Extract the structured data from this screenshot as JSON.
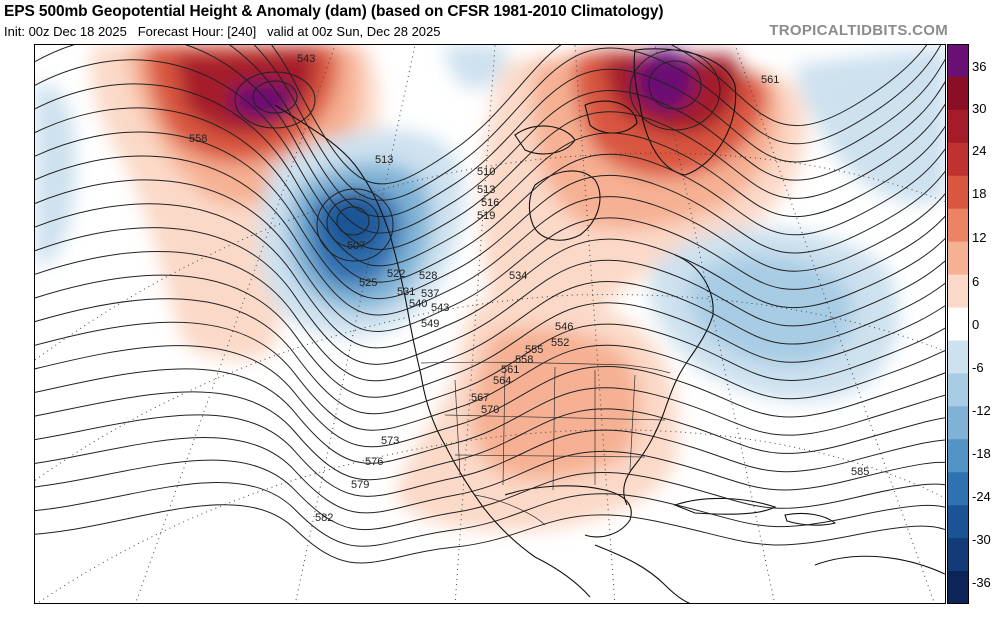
{
  "header": {
    "title": "EPS 500mb Geopotential Height & Anomaly (dam) (based on CFSR 1981-2010 Climatology)",
    "init": "Init: 00z Dec 18 2025",
    "forecast_hour": "Forecast Hour: [240]",
    "valid": "valid at 00z Sun, Dec 28 2025",
    "site": "TROPICALTIDBITS.COM"
  },
  "colorbar": {
    "tick_labels": [
      "36",
      "30",
      "24",
      "18",
      "12",
      "6",
      "0",
      "-6",
      "-12",
      "-18",
      "-24",
      "-30",
      "-36"
    ],
    "colors": [
      "#6a0f74",
      "#8b0f24",
      "#a51b29",
      "#c0322f",
      "#d9573f",
      "#ec8463",
      "#f6b093",
      "#fbd9c8",
      "#ffffff",
      "#cde1ef",
      "#a8cce4",
      "#7fb2d6",
      "#5394c6",
      "#3071b0",
      "#1b5495",
      "#123b78",
      "#0c2457"
    ]
  },
  "map": {
    "height_contour_labels": [
      "543",
      "561",
      "558",
      "513",
      "510",
      "513",
      "516",
      "519",
      "507",
      "525",
      "522",
      "528",
      "531",
      "534",
      "537",
      "540",
      "543",
      "546",
      "549",
      "552",
      "555",
      "558",
      "561",
      "564",
      "567",
      "570",
      "573",
      "576",
      "579",
      "582",
      "585"
    ],
    "anomaly_centers": [
      {
        "name": "north-pacific-ridge",
        "anomaly_dam": 36
      },
      {
        "name": "greenland-ridge",
        "anomaly_dam": 36
      },
      {
        "name": "gulf-of-alaska-trough",
        "anomaly_dam": -24
      },
      {
        "name": "north-atlantic-trough",
        "anomaly_dam": -12
      },
      {
        "name": "us-ridge",
        "anomaly_dam": 9
      }
    ]
  }
}
